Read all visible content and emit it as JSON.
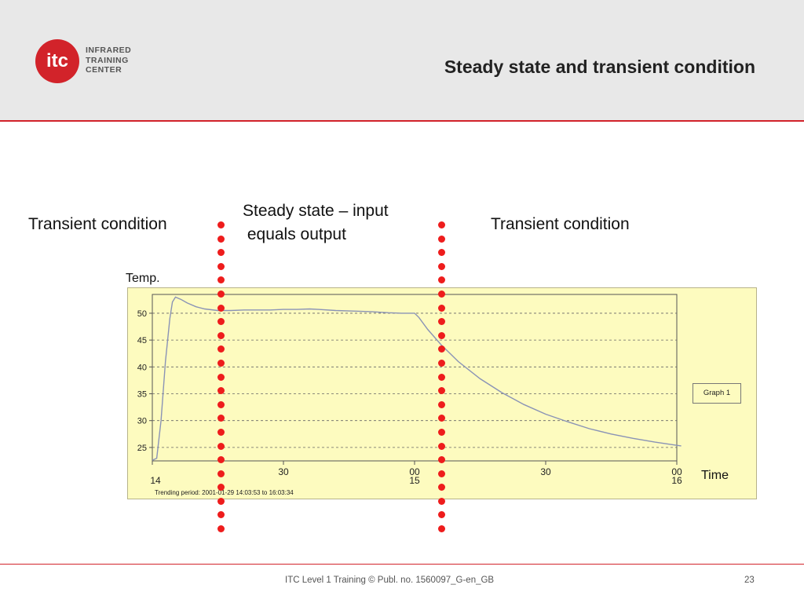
{
  "header": {
    "logo_text": "itc",
    "logo_lines": "INFRARED\nTRAINING\nCENTER",
    "title": "Steady state and transient condition"
  },
  "labels": {
    "left_transient": "Transient condition",
    "steady_state": "Steady state – input\n equals output",
    "right_transient": "Transient condition"
  },
  "colors": {
    "accent": "#d2232a",
    "dot": "#ee1c1c",
    "chart_bg": "#fdfbbf",
    "series": "#8a93b6"
  },
  "chart_data": {
    "type": "line",
    "title": "",
    "ylabel": "Temp.",
    "xlabel": "Time",
    "yticks": [
      25,
      30,
      35,
      40,
      45,
      50
    ],
    "ylim": [
      22.5,
      53.5
    ],
    "xlim_minutes": [
      0,
      120
    ],
    "xticks": [
      {
        "minute": 0,
        "label": "",
        "sublabel": "14"
      },
      {
        "minute": 30,
        "label": "30",
        "sublabel": ""
      },
      {
        "minute": 60,
        "label": "00",
        "sublabel": "15"
      },
      {
        "minute": 90,
        "label": "30",
        "sublabel": ""
      },
      {
        "minute": 120,
        "label": "00",
        "sublabel": "16"
      }
    ],
    "grid": true,
    "trending_period": "Trending period: 2001-01-29 14:03:53 to 16:03:34",
    "legend": "Graph 1",
    "series": [
      {
        "points": [
          [
            0,
            22.6
          ],
          [
            1,
            23.0
          ],
          [
            2,
            30.0
          ],
          [
            3,
            41.0
          ],
          [
            4,
            49.0
          ],
          [
            4.6,
            52.1
          ],
          [
            5.3,
            53.0
          ],
          [
            6.5,
            52.6
          ],
          [
            8,
            51.9
          ],
          [
            10,
            51.2
          ],
          [
            12,
            50.8
          ],
          [
            15,
            50.5
          ],
          [
            18,
            50.5
          ],
          [
            21,
            50.6
          ],
          [
            24,
            50.6
          ],
          [
            27,
            50.6
          ],
          [
            30,
            50.7
          ],
          [
            33,
            50.7
          ],
          [
            36,
            50.8
          ],
          [
            38,
            50.7
          ],
          [
            42,
            50.5
          ],
          [
            46,
            50.4
          ],
          [
            50,
            50.3
          ],
          [
            54,
            50.1
          ],
          [
            57,
            50.0
          ],
          [
            60,
            50.0
          ],
          [
            61,
            49.2
          ],
          [
            63,
            47.0
          ],
          [
            66,
            44.2
          ],
          [
            70,
            41.0
          ],
          [
            75,
            37.8
          ],
          [
            80,
            35.2
          ],
          [
            85,
            33.0
          ],
          [
            90,
            31.2
          ],
          [
            95,
            29.8
          ],
          [
            100,
            28.5
          ],
          [
            105,
            27.5
          ],
          [
            110,
            26.7
          ],
          [
            115,
            26.0
          ],
          [
            120,
            25.4
          ],
          [
            121,
            25.3
          ]
        ]
      }
    ]
  },
  "footer": {
    "publication": "ITC Level 1 Training ©  Publ. no. 1560097_G-en_GB",
    "page": "23"
  }
}
